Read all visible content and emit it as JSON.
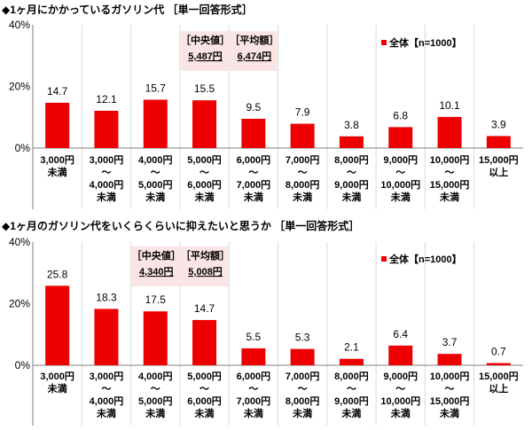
{
  "chart_data": [
    {
      "type": "bar",
      "title": "◆1ヶ月にかかっているガソリン代 ［単一回答形式］",
      "categories": [
        [
          "3,000円",
          "未満"
        ],
        [
          "3,000円",
          "～",
          "4,000円",
          "未満"
        ],
        [
          "4,000円",
          "～",
          "5,000円",
          "未満"
        ],
        [
          "5,000円",
          "～",
          "6,000円",
          "未満"
        ],
        [
          "6,000円",
          "～",
          "7,000円",
          "未満"
        ],
        [
          "7,000円",
          "～",
          "8,000円",
          "未満"
        ],
        [
          "8,000円",
          "～",
          "9,000円",
          "未満"
        ],
        [
          "9,000円",
          "～",
          "10,000円",
          "未満"
        ],
        [
          "10,000円",
          "～",
          "15,000円",
          "未満"
        ],
        [
          "15,000円",
          "以上"
        ]
      ],
      "series": [
        {
          "name": "全体【n=1000】",
          "values": [
            14.7,
            12.1,
            15.7,
            15.5,
            9.5,
            7.9,
            3.8,
            6.8,
            10.1,
            3.9
          ]
        }
      ],
      "data_labels": [
        "14.7",
        "12.1",
        "15.7",
        "15.5",
        "9.5",
        "7.9",
        "3.8",
        "6.8",
        "10.1",
        "3.9"
      ],
      "ylim": [
        0,
        40
      ],
      "yticks": [
        "0%",
        "20%",
        "40%"
      ],
      "legend": "top-right",
      "annotations": [
        {
          "label": "［中央値］",
          "value": "5,487円",
          "category_index": 3
        },
        {
          "label": "［平均額］",
          "value": "6,474円",
          "category_index": 4
        }
      ]
    },
    {
      "type": "bar",
      "title": "◆1ヶ月のガソリン代をいくらくらいに抑えたいと思うか ［単一回答形式］",
      "categories": [
        [
          "3,000円",
          "未満"
        ],
        [
          "3,000円",
          "～",
          "4,000円",
          "未満"
        ],
        [
          "4,000円",
          "～",
          "5,000円",
          "未満"
        ],
        [
          "5,000円",
          "～",
          "6,000円",
          "未満"
        ],
        [
          "6,000円",
          "～",
          "7,000円",
          "未満"
        ],
        [
          "7,000円",
          "～",
          "8,000円",
          "未満"
        ],
        [
          "8,000円",
          "～",
          "9,000円",
          "未満"
        ],
        [
          "9,000円",
          "～",
          "10,000円",
          "未満"
        ],
        [
          "10,000円",
          "～",
          "15,000円",
          "未満"
        ],
        [
          "15,000円",
          "以上"
        ]
      ],
      "series": [
        {
          "name": "全体【n=1000】",
          "values": [
            25.8,
            18.3,
            17.5,
            14.7,
            5.5,
            5.3,
            2.1,
            6.4,
            3.7,
            0.7
          ]
        }
      ],
      "data_labels": [
        "25.8",
        "18.3",
        "17.5",
        "14.7",
        "5.5",
        "5.3",
        "2.1",
        "6.4",
        "3.7",
        "0.7"
      ],
      "ylim": [
        0,
        40
      ],
      "yticks": [
        "0%",
        "20%",
        "40%"
      ],
      "legend": "top-right",
      "annotations": [
        {
          "label": "［中央値］",
          "value": "4,340円",
          "category_index": 2
        },
        {
          "label": "［平均額］",
          "value": "5,008円",
          "category_index": 3
        }
      ]
    }
  ],
  "colors": {
    "bar": "#ee0000",
    "annotation_bg": "#fbe4e4",
    "grid": "#d9d9d9",
    "axis": "#7f7f7f"
  }
}
